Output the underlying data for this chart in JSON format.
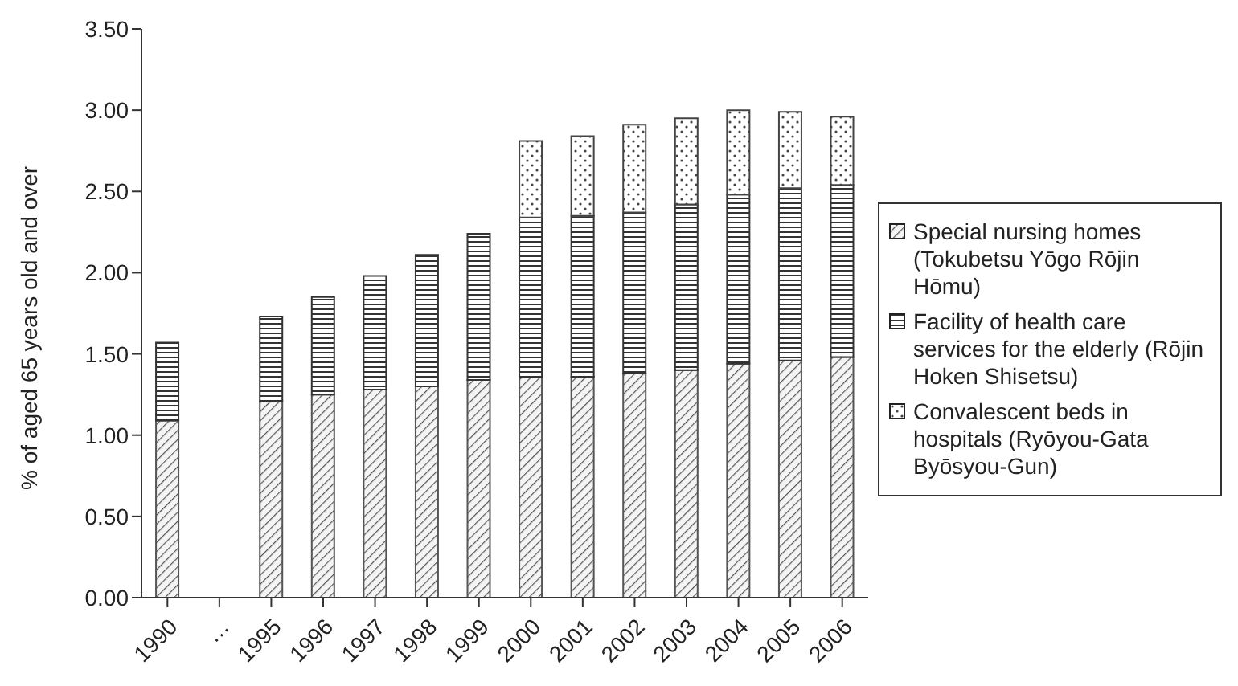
{
  "chart_data": {
    "type": "bar",
    "stacked": true,
    "ylabel": "% of aged 65 years old and over",
    "categories": [
      "1990",
      "…",
      "1995",
      "1996",
      "1997",
      "1998",
      "1999",
      "2000",
      "2001",
      "2002",
      "2003",
      "2004",
      "2005",
      "2006"
    ],
    "series": [
      {
        "name": "Special nursing homes (Tokubetsu Yōgo Rōjin Hōmu)",
        "color": "#555555",
        "values": [
          1.09,
          null,
          1.21,
          1.25,
          1.28,
          1.3,
          1.34,
          1.36,
          1.36,
          1.38,
          1.4,
          1.44,
          1.46,
          1.48
        ]
      },
      {
        "name": "Facility of health care services for the elderly (Rōjin Hoken Shisetsu)",
        "color": "#333333",
        "values": [
          0.48,
          null,
          0.52,
          0.6,
          0.7,
          0.81,
          0.9,
          0.98,
          0.99,
          0.99,
          1.02,
          1.04,
          1.06,
          1.06
        ]
      },
      {
        "name": "Convalescent beds in hospitals (Ryōyou-Gata Byōsyou-Gun)",
        "color": "#444444",
        "values": [
          null,
          null,
          null,
          null,
          null,
          null,
          null,
          0.47,
          0.49,
          0.54,
          0.53,
          0.52,
          0.47,
          0.42
        ]
      }
    ],
    "ylim": [
      0,
      3.5
    ],
    "yticks": [
      {
        "value": 0,
        "label": "0.00"
      },
      {
        "value": 0.5,
        "label": "0.50"
      },
      {
        "value": 1,
        "label": "1.00"
      },
      {
        "value": 1.5,
        "label": "1.50"
      },
      {
        "value": 2,
        "label": "2.00"
      },
      {
        "value": 2.5,
        "label": "2.50"
      },
      {
        "value": 3,
        "label": "3.00"
      },
      {
        "value": 3.5,
        "label": "3.50"
      }
    ],
    "grid": false,
    "legend": "right"
  }
}
